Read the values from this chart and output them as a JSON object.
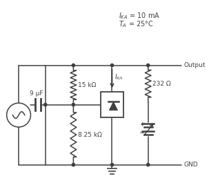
{
  "label_15k": "15 kΩ",
  "label_825": "8.25 kΩ",
  "label_232": "232 Ω",
  "label_9uF": "9 μF",
  "label_output": "Output",
  "label_gnd": "GND",
  "label_plus": "+",
  "label_minus": "−",
  "ann_line1": "I",
  "ann_line1_sub": "KA",
  "ann_line1_val": " = 10 mA",
  "ann_line2": "T",
  "ann_line2_sub": "A",
  "ann_line2_val": " = 25°C",
  "bg_color": "#ffffff",
  "line_color": "#404040",
  "text_color": "#404040",
  "figsize": [
    3.03,
    2.81
  ],
  "dpi": 100
}
